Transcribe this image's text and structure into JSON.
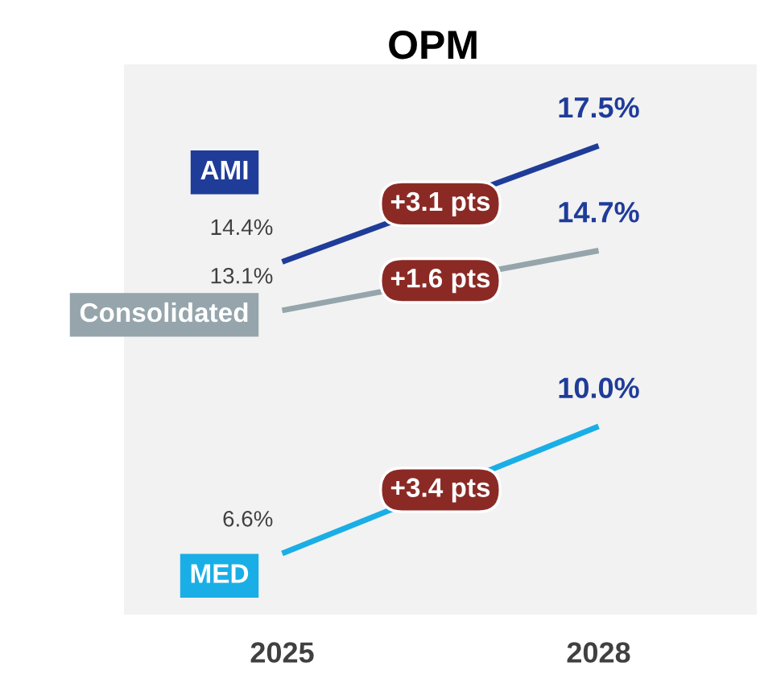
{
  "chart_data": {
    "type": "line",
    "title": "OPM",
    "categories": [
      "2025",
      "2028"
    ],
    "legend": false,
    "grid": false,
    "marker": "none",
    "series": [
      {
        "name": "AMI",
        "color": "#1f3c99",
        "values": [
          14.4,
          17.5
        ],
        "value_labels": [
          "14.4%",
          "17.5%"
        ]
      },
      {
        "name": "Consolidated",
        "color": "#95a5ab",
        "values": [
          13.1,
          14.7
        ],
        "value_labels": [
          "13.1%",
          "14.7%"
        ]
      },
      {
        "name": "MED",
        "color": "#1aaee6",
        "values": [
          6.6,
          10.0
        ],
        "value_labels": [
          "6.6%",
          "10.0%"
        ]
      }
    ],
    "annotations": [
      "+3.1 pts",
      "+1.6 pts",
      "+3.4 pts"
    ]
  }
}
